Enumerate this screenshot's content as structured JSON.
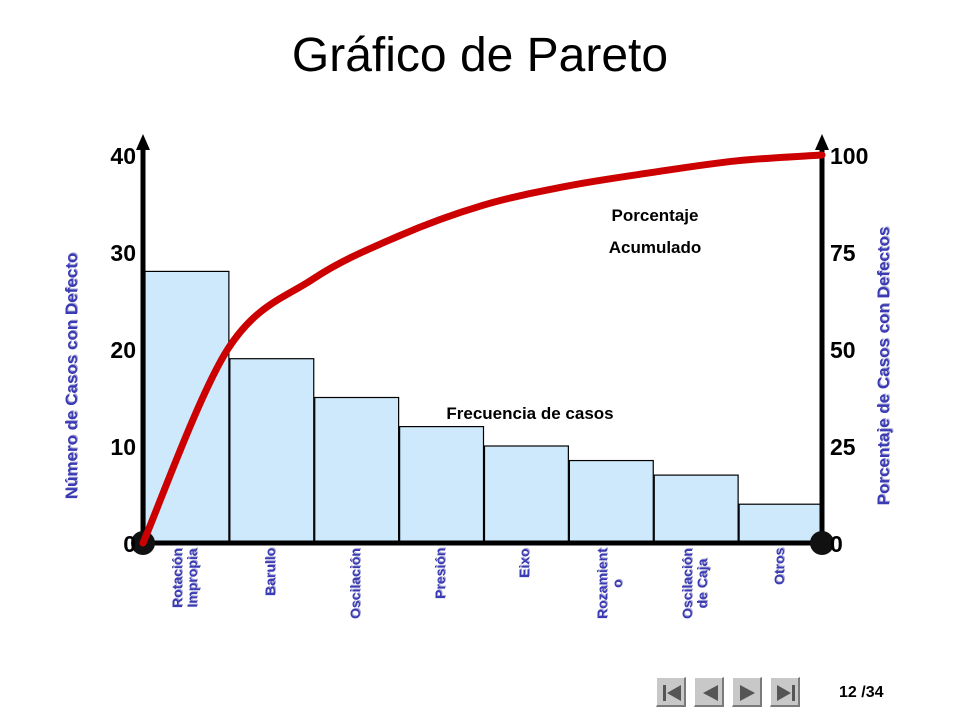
{
  "title": "Gráfico de Pareto",
  "chart_data": {
    "type": "bar",
    "categories": [
      [
        "Rotación",
        "Impropia"
      ],
      [
        "Barullo"
      ],
      [
        "Oscilación"
      ],
      [
        "Presión"
      ],
      [
        "Eixo"
      ],
      [
        "Rozamient",
        "o"
      ],
      [
        "Oscilación",
        "de Caja"
      ],
      [
        "Otros"
      ]
    ],
    "values": [
      28,
      19,
      15,
      12,
      10,
      8.5,
      7,
      4
    ],
    "ylabel_left": "Número de Casos con Defecto",
    "ylabel_right": "Porcentaje de Casos con Defectos",
    "yticks_left": [
      "0",
      "10",
      "20",
      "30",
      "40"
    ],
    "yticks_right": [
      "0",
      "25",
      "50",
      "75",
      "100"
    ],
    "ylim_left": [
      0,
      40
    ],
    "ylim_right": [
      0,
      100
    ],
    "cumulative_line": {
      "x": [
        0,
        1,
        2,
        3,
        4,
        5,
        6,
        7,
        8
      ],
      "y": [
        0,
        50,
        68,
        79,
        87,
        92,
        95.5,
        98.5,
        100
      ]
    },
    "annotations": {
      "cumulative": [
        "Porcentaje",
        "Acumulado"
      ],
      "frequency": "Frecuencia de casos"
    },
    "colors": {
      "bar_fill": "#cde9fb",
      "bar_stroke": "#000000",
      "line": "#cc0000",
      "axis": "#000000",
      "axis_label": "#3a3ab4"
    },
    "grid": false
  },
  "pager": "12 /34",
  "nav_icons": [
    "first-page-icon",
    "previous-page-icon",
    "next-page-icon",
    "last-page-icon"
  ]
}
